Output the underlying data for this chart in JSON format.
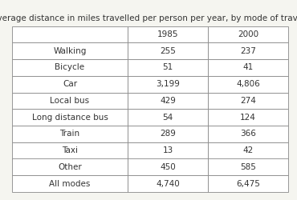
{
  "title": "Average distance in miles travelled per person per year, by mode of travel",
  "columns": [
    "",
    "1985",
    "2000"
  ],
  "rows": [
    [
      "Walking",
      "255",
      "237"
    ],
    [
      "Bicycle",
      "51",
      "41"
    ],
    [
      "Car",
      "3,199",
      "4,806"
    ],
    [
      "Local bus",
      "429",
      "274"
    ],
    [
      "Long distance bus",
      "54",
      "124"
    ],
    [
      "Train",
      "289",
      "366"
    ],
    [
      "Taxi",
      "13",
      "42"
    ],
    [
      "Other",
      "450",
      "585"
    ],
    [
      "All modes",
      "4,740",
      "6,475"
    ]
  ],
  "bg_color": "#f5f5f0",
  "table_bg": "#ffffff",
  "title_fontsize": 7.5,
  "cell_fontsize": 7.5
}
